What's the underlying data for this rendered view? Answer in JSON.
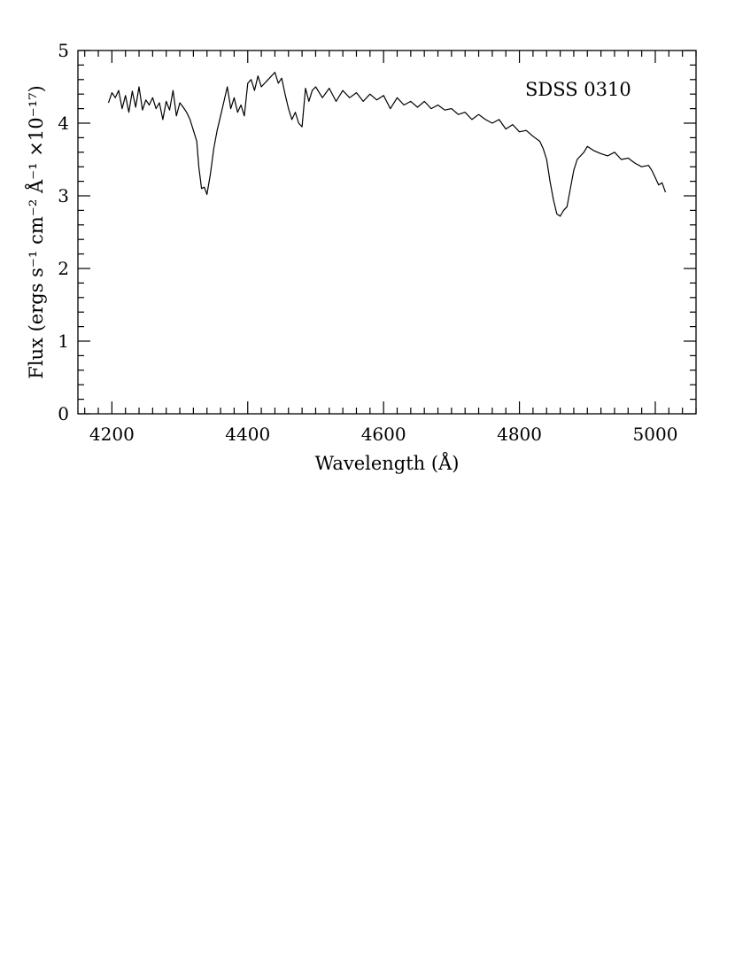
{
  "chart_data": {
    "type": "line",
    "title": "",
    "xlabel": "Wavelength (Å)",
    "ylabel": "Flux (ergs s⁻¹ cm⁻² Å⁻¹ ×10⁻¹⁷)",
    "annotation": "SDSS 0310",
    "xlim": [
      4150,
      5060
    ],
    "ylim": [
      0,
      5
    ],
    "xticks": [
      4200,
      4400,
      4600,
      4800,
      5000
    ],
    "yticks": [
      0,
      1,
      2,
      3,
      4,
      5
    ],
    "x_minor_step": 20,
    "y_minor_step": 0.2,
    "grid": false,
    "legend": "none",
    "line_color": "#000000",
    "series": [
      {
        "x": [
          4195,
          4200,
          4205,
          4210,
          4215,
          4220,
          4225,
          4230,
          4235,
          4240,
          4245,
          4250,
          4255,
          4260,
          4265,
          4270,
          4275,
          4280,
          4285,
          4290,
          4295,
          4300,
          4305,
          4310,
          4315,
          4320,
          4325,
          4328,
          4332,
          4336,
          4340,
          4345,
          4350,
          4355,
          4360,
          4365,
          4370,
          4375,
          4380,
          4385,
          4390,
          4395,
          4400,
          4405,
          4410,
          4415,
          4420,
          4425,
          4430,
          4435,
          4440,
          4445,
          4450,
          4455,
          4460,
          4465,
          4470,
          4475,
          4480,
          4485,
          4490,
          4495,
          4500,
          4510,
          4520,
          4530,
          4540,
          4550,
          4560,
          4570,
          4580,
          4590,
          4600,
          4610,
          4620,
          4630,
          4640,
          4650,
          4660,
          4670,
          4680,
          4690,
          4700,
          4710,
          4720,
          4730,
          4740,
          4750,
          4760,
          4770,
          4780,
          4790,
          4800,
          4810,
          4820,
          4830,
          4835,
          4840,
          4845,
          4850,
          4855,
          4860,
          4865,
          4870,
          4875,
          4880,
          4885,
          4890,
          4895,
          4900,
          4910,
          4920,
          4930,
          4940,
          4950,
          4960,
          4970,
          4980,
          4990,
          4995,
          5000,
          5005,
          5010,
          5015
        ],
        "y": [
          4.28,
          4.42,
          4.35,
          4.45,
          4.2,
          4.38,
          4.15,
          4.44,
          4.22,
          4.5,
          4.18,
          4.32,
          4.25,
          4.35,
          4.2,
          4.28,
          4.05,
          4.3,
          4.18,
          4.45,
          4.1,
          4.28,
          4.22,
          4.15,
          4.05,
          3.9,
          3.75,
          3.4,
          3.1,
          3.12,
          3.02,
          3.3,
          3.65,
          3.9,
          4.1,
          4.3,
          4.5,
          4.2,
          4.35,
          4.15,
          4.25,
          4.1,
          4.55,
          4.6,
          4.45,
          4.65,
          4.5,
          4.55,
          4.6,
          4.65,
          4.7,
          4.55,
          4.62,
          4.4,
          4.2,
          4.05,
          4.15,
          4.0,
          3.95,
          4.48,
          4.3,
          4.45,
          4.5,
          4.35,
          4.48,
          4.3,
          4.45,
          4.35,
          4.42,
          4.3,
          4.4,
          4.32,
          4.38,
          4.2,
          4.35,
          4.25,
          4.3,
          4.22,
          4.3,
          4.2,
          4.25,
          4.18,
          4.2,
          4.12,
          4.15,
          4.05,
          4.12,
          4.05,
          4.0,
          4.05,
          3.92,
          3.98,
          3.88,
          3.9,
          3.82,
          3.75,
          3.65,
          3.5,
          3.2,
          2.95,
          2.75,
          2.72,
          2.8,
          2.85,
          3.1,
          3.35,
          3.5,
          3.55,
          3.6,
          3.68,
          3.62,
          3.58,
          3.55,
          3.6,
          3.5,
          3.52,
          3.45,
          3.4,
          3.42,
          3.35,
          3.25,
          3.15,
          3.18,
          3.05
        ]
      }
    ]
  }
}
